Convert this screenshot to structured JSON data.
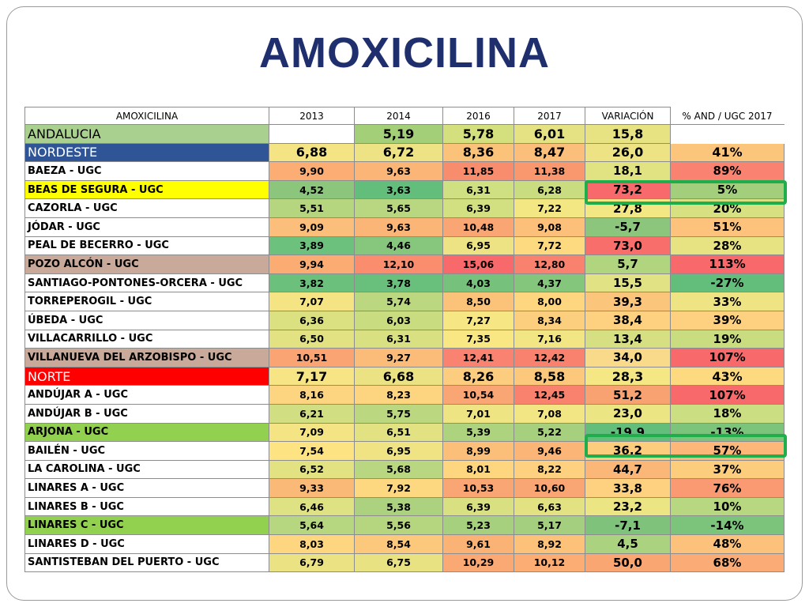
{
  "title": "AMOXICILINA",
  "headers": [
    "AMOXICILINA",
    "2013",
    "2014",
    "2016",
    "2017",
    "VARIACIÓN",
    "% AND / UGC 2017"
  ],
  "rows": [
    {
      "name": "ANDALUCIA",
      "region": true,
      "nameBg": "#a9d08e",
      "nameColor": "#000000",
      "cells": [
        "",
        "5,19",
        "5,78",
        "6,01",
        "15,8",
        ""
      ],
      "colors": [
        "#ffffff",
        "#a3cf78",
        "#d4e07d",
        "#e5e283",
        "#e7e383",
        ""
      ]
    },
    {
      "name": "NORDESTE",
      "region": true,
      "nameBg": "#2f5597",
      "nameColor": "#ffffff",
      "cells": [
        "6,88",
        "6,72",
        "8,36",
        "8,47",
        "26,0",
        "41%"
      ],
      "colors": [
        "#f4e484",
        "#eee384",
        "#fbc27a",
        "#fcbf7b",
        "#eee384",
        "#fcc57c"
      ]
    },
    {
      "name": "BAEZA - UGC",
      "cells": [
        "9,90",
        "9,63",
        "11,85",
        "11,38",
        "18,1",
        "89%"
      ],
      "colors": [
        "#fbad73",
        "#fbb576",
        "#f88d6d",
        "#f9986f",
        "#e1e383",
        "#f98370"
      ]
    },
    {
      "name": "BEAS DE SEGURA - UGC",
      "nameBg": "#ffff00",
      "cells": [
        "4,52",
        "3,63",
        "6,31",
        "6,28",
        "73,2",
        "5%"
      ],
      "colors": [
        "#8cc57c",
        "#63be7b",
        "#cfe082",
        "#c9dc80",
        "#f8696b",
        "#a3cf7d"
      ]
    },
    {
      "name": "CAZORLA - UGC",
      "cells": [
        "5,51",
        "5,65",
        "6,39",
        "7,22",
        "27,8",
        "20%"
      ],
      "colors": [
        "#b5d57f",
        "#b8d780",
        "#d3e082",
        "#f3e784",
        "#f3e784",
        "#d7e182"
      ]
    },
    {
      "name": "JÓDAR - UGC",
      "cells": [
        "9,09",
        "9,63",
        "10,48",
        "9,08",
        "-5,7",
        "51%"
      ],
      "colors": [
        "#fbbe7b",
        "#fbb576",
        "#faa574",
        "#fcc07b",
        "#8cc57c",
        "#fdc37c"
      ]
    },
    {
      "name": "PEAL DE BECERRO - UGC",
      "cells": [
        "3,89",
        "4,46",
        "6,95",
        "7,72",
        "73,0",
        "28%"
      ],
      "colors": [
        "#6cc17c",
        "#86c67d",
        "#eee384",
        "#fdda80",
        "#f86e6b",
        "#e7e383"
      ]
    },
    {
      "name": "POZO ALCÓN - UGC",
      "nameBg": "#c9a99a",
      "cells": [
        "9,94",
        "12,10",
        "15,06",
        "12,80",
        "5,7",
        "113%"
      ],
      "colors": [
        "#fbac73",
        "#f98d6d",
        "#f8696b",
        "#f8826d",
        "#b1d47f",
        "#f8696b"
      ]
    },
    {
      "name": "SANTIAGO-PONTONES-ORCERA - UGC",
      "cells": [
        "3,82",
        "3,78",
        "4,03",
        "4,37",
        "15,5",
        "-27%"
      ],
      "colors": [
        "#6bc07c",
        "#69c07c",
        "#76c27c",
        "#85c67d",
        "#e1e283",
        "#63be7b"
      ]
    },
    {
      "name": "TORREPEROGIL - UGC",
      "cells": [
        "7,07",
        "5,74",
        "8,50",
        "8,00",
        "39,3",
        "33%"
      ],
      "colors": [
        "#f4e484",
        "#bbd880",
        "#fbc27a",
        "#fdd67f",
        "#fcc57c",
        "#efe484"
      ]
    },
    {
      "name": "ÚBEDA - UGC",
      "cells": [
        "6,36",
        "6,03",
        "7,27",
        "8,34",
        "38,4",
        "39%"
      ],
      "colors": [
        "#dbe081",
        "#c9dc80",
        "#f6e784",
        "#fccf7e",
        "#fdd17f",
        "#fdd17f"
      ]
    },
    {
      "name": "VILLACARRILLO - UGC",
      "cells": [
        "6,50",
        "6,31",
        "7,35",
        "7,16",
        "13,4",
        "19%"
      ],
      "colors": [
        "#e2e283",
        "#d8e082",
        "#f9e784",
        "#f2e684",
        "#d6e082",
        "#c9dc80"
      ]
    },
    {
      "name": "VILLANUEVA DEL ARZOBISPO - UGC",
      "nameBg": "#c9a99a",
      "cells": [
        "10,51",
        "9,27",
        "12,41",
        "12,42",
        "34,0",
        "107%"
      ],
      "colors": [
        "#faa473",
        "#fbbc7a",
        "#f98370",
        "#f8826d",
        "#f9d98a",
        "#f8696b"
      ]
    },
    {
      "name": "NORTE",
      "region": true,
      "nameBg": "#ff0000",
      "nameColor": "#ffffff",
      "cells": [
        "7,17",
        "6,68",
        "8,26",
        "8,58",
        "28,3",
        "43%"
      ],
      "colors": [
        "#f7e484",
        "#ebe283",
        "#fccd7e",
        "#fcc87c",
        "#f5e784",
        "#fdda80"
      ]
    },
    {
      "name": "ANDÚJAR A - UGC",
      "cells": [
        "8,16",
        "8,23",
        "10,54",
        "12,45",
        "51,2",
        "107%"
      ],
      "colors": [
        "#fdd47f",
        "#fdd47f",
        "#faa574",
        "#f8826d",
        "#f8a272",
        "#f8696b"
      ]
    },
    {
      "name": "ANDÚJAR B - UGC",
      "cells": [
        "6,21",
        "5,75",
        "7,01",
        "7,08",
        "23,0",
        "18%"
      ],
      "colors": [
        "#d1de81",
        "#bbd880",
        "#efe484",
        "#f1e584",
        "#ebe584",
        "#cbde81"
      ]
    },
    {
      "name": "ARJONA - UGC",
      "nameBg": "#92d050",
      "cells": [
        "7,09",
        "6,51",
        "5,39",
        "5,22",
        "-19.9",
        "-13%"
      ],
      "colors": [
        "#f4e484",
        "#e2e283",
        "#aed37f",
        "#a6d07e",
        "#63be7b",
        "#7cc47c"
      ]
    },
    {
      "name": "BAILÉN - UGC",
      "cells": [
        "7,54",
        "6,95",
        "8,99",
        "9,46",
        "36,2",
        "57%"
      ],
      "colors": [
        "#fee383",
        "#efe384",
        "#fcbf7a",
        "#fbb576",
        "#fdcd7e",
        "#fcb779"
      ]
    },
    {
      "name": "LA CAROLINA - UGC",
      "cells": [
        "6,52",
        "5,68",
        "8,01",
        "8,22",
        "44,7",
        "37%"
      ],
      "colors": [
        "#e3e283",
        "#b9d780",
        "#fdd67f",
        "#fdd17f",
        "#fbb778",
        "#fdcd7e"
      ]
    },
    {
      "name": "LINARES A - UGC",
      "cells": [
        "9,33",
        "7,92",
        "10,53",
        "10,60",
        "33,8",
        "76%"
      ],
      "colors": [
        "#fbb977",
        "#fdd880",
        "#faa574",
        "#faa574",
        "#fdd17f",
        "#f99a73"
      ]
    },
    {
      "name": "LINARES B - UGC",
      "cells": [
        "6,46",
        "5,38",
        "6,39",
        "6,63",
        "23,2",
        "10%"
      ],
      "colors": [
        "#dfe282",
        "#acd27f",
        "#d9e082",
        "#e2e283",
        "#ebe584",
        "#b7d880"
      ]
    },
    {
      "name": "LINARES C - UGC",
      "nameBg": "#92d050",
      "cells": [
        "5,64",
        "5,56",
        "5,23",
        "5,17",
        "-7,1",
        "-14%"
      ],
      "colors": [
        "#b7d680",
        "#b5d57f",
        "#a6d07e",
        "#a4cf7e",
        "#7fc27b",
        "#7cc47c"
      ]
    },
    {
      "name": "LINARES D - UGC",
      "cells": [
        "8,03",
        "8,54",
        "9,61",
        "8,92",
        "4,5",
        "48%"
      ],
      "colors": [
        "#fdd67f",
        "#fcc97c",
        "#fbb375",
        "#fcc27a",
        "#abd27f",
        "#fcc17b"
      ]
    },
    {
      "name": "SANTISTEBAN DEL PUERTO - UGC",
      "cells": [
        "6,79",
        "6,75",
        "10,29",
        "10,12",
        "50,0",
        "68%"
      ],
      "colors": [
        "#eae283",
        "#e9e283",
        "#fba974",
        "#fbad74",
        "#f9a673",
        "#fbac76"
      ]
    }
  ]
}
